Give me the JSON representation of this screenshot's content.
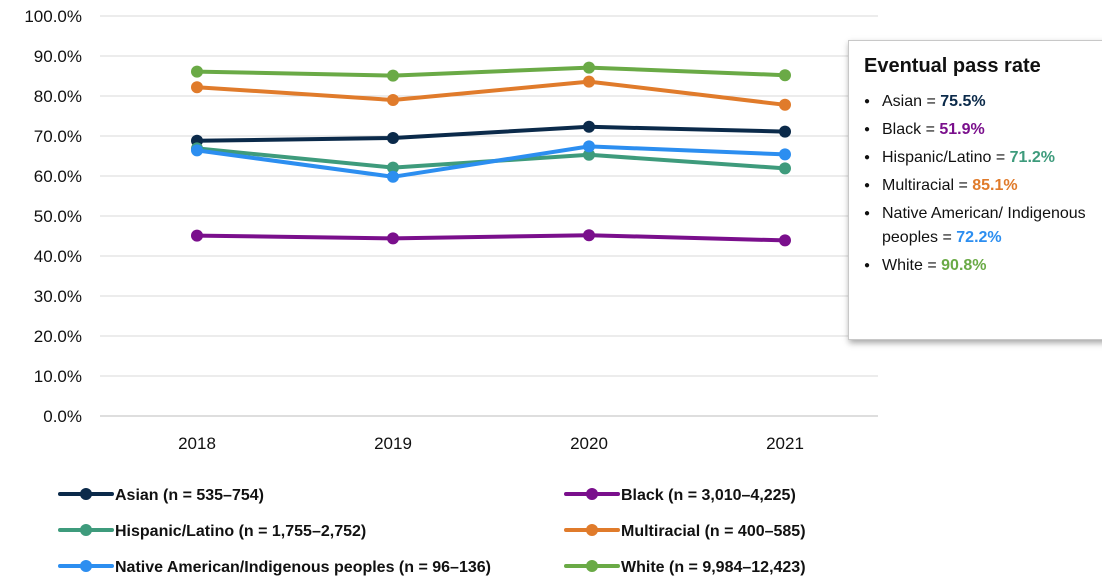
{
  "chart_data": {
    "type": "line",
    "title": "",
    "xlabel": "",
    "ylabel": "",
    "categories": [
      "2018",
      "2019",
      "2020",
      "2021"
    ],
    "ylim": [
      0,
      100
    ],
    "yticks": [
      "0.0%",
      "10.0%",
      "20.0%",
      "30.0%",
      "40.0%",
      "50.0%",
      "60.0%",
      "70.0%",
      "80.0%",
      "90.0%",
      "100.0%"
    ],
    "grid": true,
    "legend_position": "bottom",
    "series": [
      {
        "name": "Asian (n = 535–754)",
        "color": "#0b2a4a",
        "values": [
          68.8,
          69.5,
          72.3,
          71.1
        ]
      },
      {
        "name": "Black (n = 3,010–4,225)",
        "color": "#7a0f8c",
        "values": [
          45.1,
          44.4,
          45.2,
          43.9
        ]
      },
      {
        "name": "Hispanic/Latino (n = 1,755–2,752)",
        "color": "#3e9b7c",
        "values": [
          66.9,
          62.1,
          65.3,
          61.9
        ]
      },
      {
        "name": "Multiracial (n = 400–585)",
        "color": "#e07b2b",
        "values": [
          82.2,
          79.0,
          83.6,
          77.8
        ]
      },
      {
        "name": "Native American/Indigenous peoples (n = 96–136)",
        "color": "#2c8ef0",
        "values": [
          66.4,
          59.8,
          67.4,
          65.4
        ]
      },
      {
        "name": "White (n = 9,984–12,423)",
        "color": "#6aaa46",
        "values": [
          86.1,
          85.1,
          87.1,
          85.2
        ]
      }
    ]
  },
  "callout": {
    "title": "Eventual pass rate",
    "items": [
      {
        "label": "Asian = ",
        "value": "75.5%",
        "color": "#0b2a4a"
      },
      {
        "label": "Black = ",
        "value": "51.9%",
        "color": "#7a0f8c"
      },
      {
        "label": "Hispanic/Latino = ",
        "value": "71.2%",
        "color": "#3e9b7c"
      },
      {
        "label": "Multiracial = ",
        "value": "85.1%",
        "color": "#e07b2b"
      },
      {
        "label": "Native American/ Indigenous peoples = ",
        "value": "72.2%",
        "color": "#2c8ef0"
      },
      {
        "label": "White = ",
        "value": "90.8%",
        "color": "#6aaa46"
      }
    ]
  }
}
